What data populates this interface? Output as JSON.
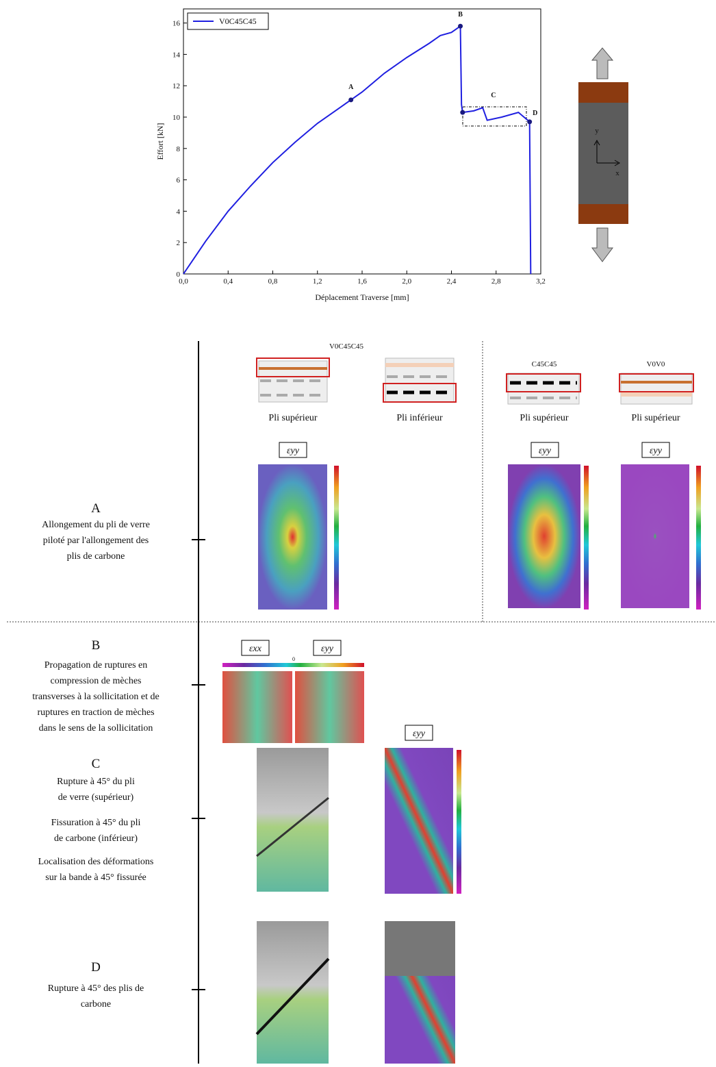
{
  "chart_data": {
    "type": "line",
    "xlabel": "Déplacement Traverse [mm]",
    "ylabel": "Effort [kN]",
    "xlim": [
      0,
      3.2
    ],
    "ylim": [
      0,
      16.9
    ],
    "xticks": [
      {
        "value": 0,
        "label": "0,0"
      },
      {
        "value": 0.4,
        "label": "0,4"
      },
      {
        "value": 0.8,
        "label": "0,8"
      },
      {
        "value": 1.2,
        "label": "1,2"
      },
      {
        "value": 1.6,
        "label": "1,6"
      },
      {
        "value": 2.0,
        "label": "2,0"
      },
      {
        "value": 2.4,
        "label": "2,4"
      },
      {
        "value": 2.8,
        "label": "2,8"
      },
      {
        "value": 3.2,
        "label": "3,2"
      }
    ],
    "yticks": [
      0,
      2,
      4,
      6,
      8,
      10,
      12,
      14,
      16
    ],
    "legend": "upper left",
    "series": [
      {
        "name": "V0C45C45",
        "color": "#1f1fe0",
        "x": [
          0,
          0.2,
          0.4,
          0.6,
          0.8,
          1.0,
          1.2,
          1.4,
          1.5,
          1.6,
          1.8,
          2.0,
          2.2,
          2.3,
          2.4,
          2.48,
          2.49,
          2.5,
          2.6,
          2.68,
          2.72,
          2.85,
          3.0,
          3.05,
          3.1,
          3.11
        ],
        "values": [
          0,
          2.1,
          4.0,
          5.6,
          7.1,
          8.4,
          9.6,
          10.6,
          11.1,
          11.6,
          12.8,
          13.8,
          14.7,
          15.2,
          15.4,
          15.8,
          10.8,
          10.3,
          10.4,
          10.6,
          9.8,
          10.0,
          10.3,
          10.0,
          9.7,
          0
        ]
      }
    ],
    "annotations": [
      {
        "text": "A",
        "x": 1.5,
        "y": 11.1
      },
      {
        "text": "B",
        "x": 2.48,
        "y": 15.8
      },
      {
        "text": "C",
        "x": 2.5,
        "y": 10.3
      },
      {
        "text": "D",
        "x": 3.1,
        "y": 9.7
      }
    ]
  },
  "specimen": {
    "axis_y": "y",
    "axis_x": "x"
  },
  "columns": [
    "V0C45C45",
    "C45C45",
    "V0V0"
  ],
  "ply_labels": [
    "Pli supérieur",
    "Pli inférieur",
    "Pli supérieur",
    "Pli supérieur"
  ],
  "strain_labels": {
    "yy": "εyy",
    "xx": "εxx",
    "zero": "0"
  },
  "stages": [
    {
      "letter": "A",
      "lines": [
        "Allongement du pli de verre",
        "piloté par l'allongement des",
        "plis de carbone"
      ]
    },
    {
      "letter": "B",
      "lines": [
        "Propagation de ruptures en",
        "compression de mèches",
        "transverses à la sollicitation et de",
        "ruptures en traction de mèches",
        "dans le sens de la sollicitation"
      ]
    },
    {
      "letter": "C",
      "lines": [
        "Rupture à 45° du pli",
        "de verre (supérieur)",
        "Fissuration à 45° du pli",
        "de carbone (inférieur)",
        "Localisation des déformations",
        "sur la bande à 45° fissurée"
      ]
    },
    {
      "letter": "D",
      "lines": [
        "Rupture à 45° des plis de",
        "carbone"
      ]
    }
  ]
}
